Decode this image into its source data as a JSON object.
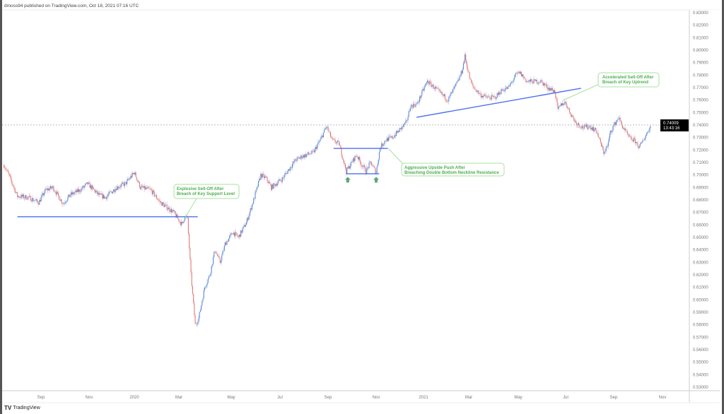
{
  "header": {
    "attribution": "dmoss94 published on TradingView.com, Oct 18, 2021 07:16 UTC"
  },
  "footer": {
    "brand": "TradingView",
    "logo_icon": "tradingview-logo-icon"
  },
  "colors": {
    "up": "#5b8ad6",
    "down": "#e07a7a",
    "trendline": "#4a6ff0",
    "annotation": "#4caf50",
    "arrow": "#5aa67a",
    "price_label_bg": "#000000"
  },
  "price_label": {
    "price": "0.74009",
    "countdown": "13:43:16"
  },
  "chart_data": {
    "type": "candlestick",
    "y_ticks": [
      "0.83000",
      "0.82000",
      "0.81000",
      "0.80000",
      "0.79000",
      "0.78000",
      "0.77000",
      "0.76000",
      "0.75000",
      "0.74000",
      "0.73000",
      "0.72000",
      "0.71000",
      "0.70000",
      "0.69000",
      "0.68000",
      "0.67000",
      "0.66000",
      "0.65000",
      "0.64000",
      "0.63000",
      "0.62000",
      "0.61000",
      "0.60000",
      "0.59000",
      "0.58000",
      "0.57000",
      "0.56000",
      "0.55000",
      "0.54000",
      "0.53000"
    ],
    "ylim": [
      0.53,
      0.83
    ],
    "x_ticks": [
      {
        "label": "Sep",
        "date": "2019-09-01"
      },
      {
        "label": "Nov",
        "date": "2019-11-01"
      },
      {
        "label": "2020",
        "date": "2020-01-01"
      },
      {
        "label": "Mar",
        "date": "2020-03-01"
      },
      {
        "label": "May",
        "date": "2020-05-01"
      },
      {
        "label": "Jul",
        "date": "2020-07-01"
      },
      {
        "label": "Sep",
        "date": "2020-09-01"
      },
      {
        "label": "Nov",
        "date": "2020-11-01"
      },
      {
        "label": "2021",
        "date": "2021-01-01"
      },
      {
        "label": "Mar",
        "date": "2021-03-01"
      },
      {
        "label": "May",
        "date": "2021-05-01"
      },
      {
        "label": "Jul",
        "date": "2021-07-01"
      },
      {
        "label": "Sep",
        "date": "2021-09-01"
      },
      {
        "label": "Nov",
        "date": "2021-11-01"
      }
    ],
    "grid": false,
    "last_price": 0.74009,
    "closes": [
      [
        "2019-07-16",
        0.708
      ],
      [
        "2019-07-22",
        0.7
      ],
      [
        "2019-08-02",
        0.683
      ],
      [
        "2019-08-16",
        0.682
      ],
      [
        "2019-08-29",
        0.678
      ],
      [
        "2019-09-07",
        0.688
      ],
      [
        "2019-09-16",
        0.69
      ],
      [
        "2019-09-29",
        0.677
      ],
      [
        "2019-10-08",
        0.684
      ],
      [
        "2019-10-21",
        0.688
      ],
      [
        "2019-10-30",
        0.693
      ],
      [
        "2019-11-14",
        0.684
      ],
      [
        "2019-11-23",
        0.682
      ],
      [
        "2019-12-08",
        0.69
      ],
      [
        "2019-12-20",
        0.693
      ],
      [
        "2020-01-01",
        0.702
      ],
      [
        "2020-01-09",
        0.69
      ],
      [
        "2020-01-23",
        0.688
      ],
      [
        "2020-02-05",
        0.678
      ],
      [
        "2020-02-14",
        0.674
      ],
      [
        "2020-02-23",
        0.67
      ],
      [
        "2020-03-05",
        0.66
      ],
      [
        "2020-03-08",
        0.668
      ],
      [
        "2020-03-11",
        0.664
      ],
      [
        "2020-03-15",
        0.62
      ],
      [
        "2020-03-20",
        0.58
      ],
      [
        "2020-03-24",
        0.585
      ],
      [
        "2020-03-31",
        0.61
      ],
      [
        "2020-04-06",
        0.62
      ],
      [
        "2020-04-12",
        0.64
      ],
      [
        "2020-04-18",
        0.63
      ],
      [
        "2020-04-24",
        0.645
      ],
      [
        "2020-05-03",
        0.654
      ],
      [
        "2020-05-10",
        0.65
      ],
      [
        "2020-05-20",
        0.662
      ],
      [
        "2020-05-29",
        0.68
      ],
      [
        "2020-06-07",
        0.7
      ],
      [
        "2020-06-14",
        0.697
      ],
      [
        "2020-06-20",
        0.69
      ],
      [
        "2020-07-04",
        0.697
      ],
      [
        "2020-07-13",
        0.705
      ],
      [
        "2020-07-21",
        0.712
      ],
      [
        "2020-07-30",
        0.715
      ],
      [
        "2020-08-13",
        0.718
      ],
      [
        "2020-08-22",
        0.728
      ],
      [
        "2020-08-30",
        0.739
      ],
      [
        "2020-09-06",
        0.728
      ],
      [
        "2020-09-15",
        0.725
      ],
      [
        "2020-09-24",
        0.703
      ],
      [
        "2020-10-03",
        0.712
      ],
      [
        "2020-10-07",
        0.716
      ],
      [
        "2020-10-14",
        0.708
      ],
      [
        "2020-10-19",
        0.703
      ],
      [
        "2020-10-25",
        0.71
      ],
      [
        "2020-11-01",
        0.702
      ],
      [
        "2020-11-06",
        0.722
      ],
      [
        "2020-11-13",
        0.728
      ],
      [
        "2020-11-22",
        0.73
      ],
      [
        "2020-12-01",
        0.736
      ],
      [
        "2020-12-10",
        0.742
      ],
      [
        "2020-12-15",
        0.755
      ],
      [
        "2020-12-24",
        0.757
      ],
      [
        "2021-01-02",
        0.77
      ],
      [
        "2021-01-06",
        0.775
      ],
      [
        "2021-01-15",
        0.77
      ],
      [
        "2021-01-24",
        0.765
      ],
      [
        "2021-02-02",
        0.76
      ],
      [
        "2021-02-06",
        0.765
      ],
      [
        "2021-02-15",
        0.775
      ],
      [
        "2021-02-20",
        0.783
      ],
      [
        "2021-02-24",
        0.795
      ],
      [
        "2021-03-03",
        0.775
      ],
      [
        "2021-03-07",
        0.77
      ],
      [
        "2021-03-16",
        0.764
      ],
      [
        "2021-03-24",
        0.762
      ],
      [
        "2021-04-02",
        0.762
      ],
      [
        "2021-04-11",
        0.768
      ],
      [
        "2021-04-19",
        0.77
      ],
      [
        "2021-04-28",
        0.78
      ],
      [
        "2021-05-03",
        0.782
      ],
      [
        "2021-05-12",
        0.775
      ],
      [
        "2021-05-21",
        0.775
      ],
      [
        "2021-05-30",
        0.775
      ],
      [
        "2021-06-08",
        0.77
      ],
      [
        "2021-06-17",
        0.767
      ],
      [
        "2021-06-21",
        0.752
      ],
      [
        "2021-06-26",
        0.757
      ],
      [
        "2021-07-01",
        0.758
      ],
      [
        "2021-07-05",
        0.752
      ],
      [
        "2021-07-14",
        0.742
      ],
      [
        "2021-07-23",
        0.738
      ],
      [
        "2021-08-01",
        0.739
      ],
      [
        "2021-08-10",
        0.735
      ],
      [
        "2021-08-19",
        0.718
      ],
      [
        "2021-08-24",
        0.723
      ],
      [
        "2021-08-28",
        0.735
      ],
      [
        "2021-09-07",
        0.746
      ],
      [
        "2021-09-11",
        0.74
      ],
      [
        "2021-09-20",
        0.73
      ],
      [
        "2021-09-28",
        0.727
      ],
      [
        "2021-10-03",
        0.722
      ],
      [
        "2021-10-12",
        0.733
      ],
      [
        "2021-10-18",
        0.74
      ]
    ],
    "trendlines": [
      {
        "name": "key-support",
        "from": [
          "2019-08-02",
          0.6665
        ],
        "to": [
          "2020-03-23",
          0.6665
        ]
      },
      {
        "name": "neckline-resistance",
        "from": [
          "2020-09-08",
          0.7213
        ],
        "to": [
          "2020-11-16",
          0.7213
        ]
      },
      {
        "name": "double-bottom-support",
        "from": [
          "2020-09-24",
          0.701
        ],
        "to": [
          "2020-11-05",
          0.701
        ]
      },
      {
        "name": "key-uptrend",
        "from": [
          "2020-12-23",
          0.7462
        ],
        "to": [
          "2021-07-21",
          0.7695
        ]
      }
    ],
    "markers": [
      {
        "type": "arrow-up",
        "date": "2020-09-26",
        "price": 0.6985
      },
      {
        "type": "arrow-up",
        "date": "2020-11-01",
        "price": 0.6985
      }
    ],
    "annotations": [
      {
        "lines": [
          "Explosive Sell-Off After",
          "Breach of Key Support Level"
        ]
      },
      {
        "lines": [
          "Aggressive Upside Push After",
          "Breaching Double Bottom Neckline Resistance"
        ]
      },
      {
        "lines": [
          "Accelerated Sell-Off After",
          "Breach of Key Uptrend"
        ]
      }
    ]
  }
}
